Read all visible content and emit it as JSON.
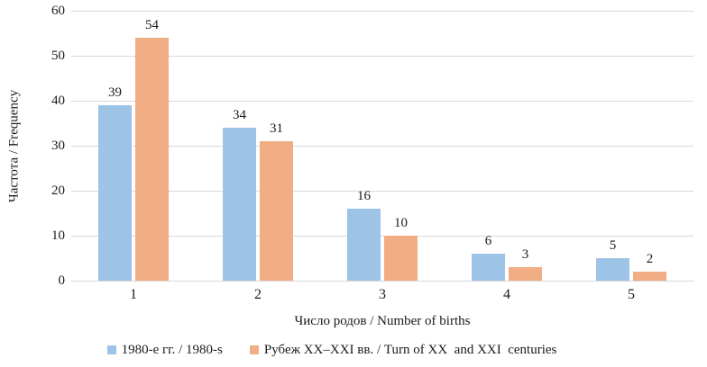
{
  "chart_data": {
    "type": "bar",
    "title": "",
    "categories": [
      "1",
      "2",
      "3",
      "4",
      "5"
    ],
    "series": [
      {
        "name": "1980-е гг. / 1980-s",
        "color": "#9dc3e6",
        "values": [
          39,
          34,
          16,
          6,
          5
        ]
      },
      {
        "name": "Рубеж XX–XXI вв. / Turn of XX  and XXI  centuries",
        "color": "#f1ad84",
        "values": [
          54,
          31,
          10,
          3,
          2
        ]
      }
    ],
    "xlabel": "Число родов / Number of births",
    "ylabel": "Частота / Frequency",
    "ylim": [
      0,
      60
    ],
    "yticks": [
      0,
      10,
      20,
      30,
      40,
      50,
      60
    ],
    "grid": "horizontal",
    "legend_position": "bottom",
    "value_labels": true
  },
  "colors": {
    "gridline": "#d9d9d9",
    "axis_line": "#d9d9d9",
    "text": "#1a1a1a"
  }
}
